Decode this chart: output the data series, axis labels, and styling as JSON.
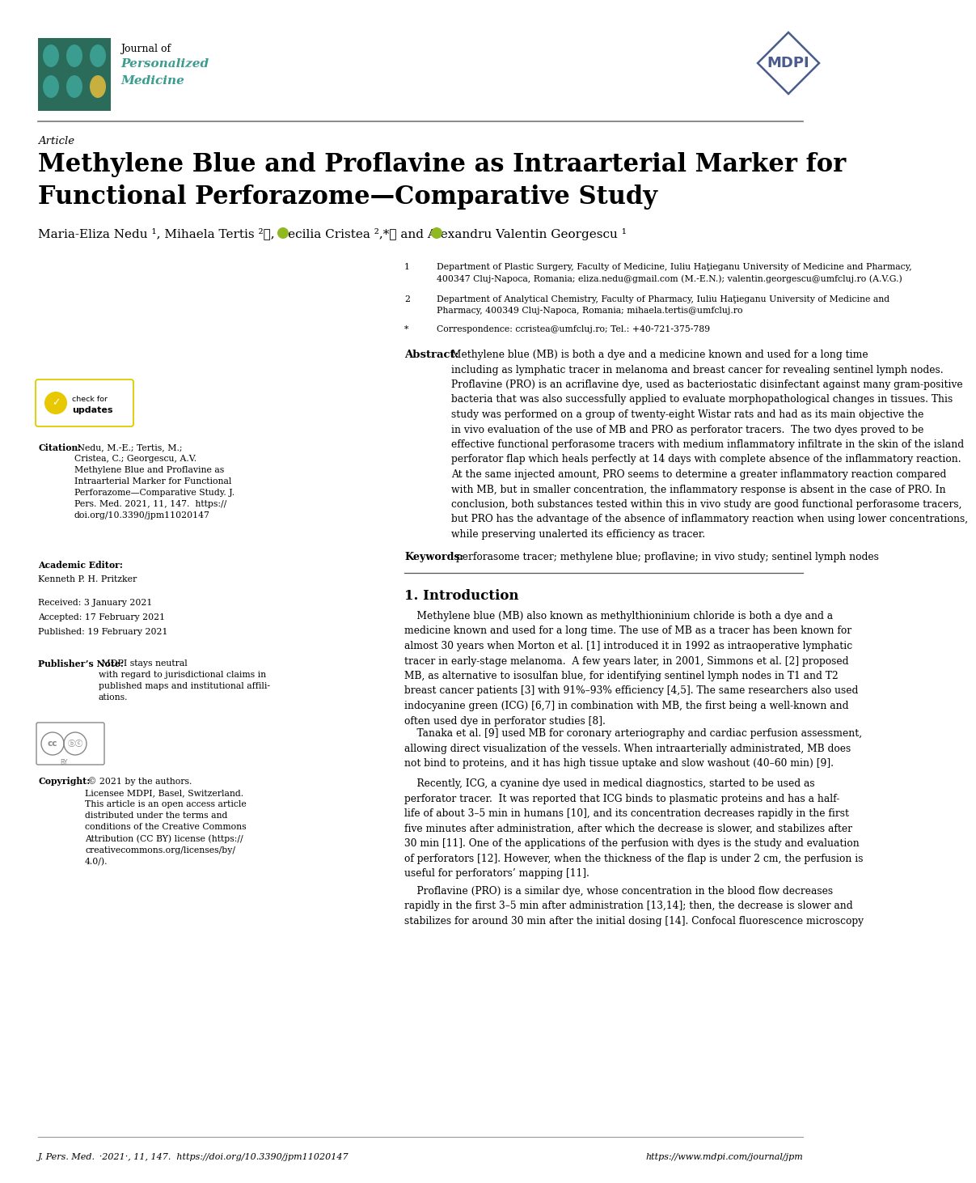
{
  "page_width": 10.2,
  "page_height": 14.42,
  "bg_color": "#ffffff",
  "teal_color": "#3a9d8f",
  "dark_teal": "#2a6b5a",
  "mdpi_blue": "#4a5b8c",
  "green_orcid": "#90b820",
  "journal_line1": "Journal of",
  "journal_line2": "Personalized",
  "journal_line3": "Medicine",
  "article_label": "Article",
  "title_line1": "Methylene Blue and Proflavine as Intraarterial Marker for",
  "title_line2": "Functional Perforazome—Comparative Study",
  "authors_text": "Maria-Eliza Nedu ¹, Mihaela Tertis ²ⓘ, Cecilia Cristea ²,*ⓘ and Alexandru Valentin Georgescu ¹",
  "affil1_num": "1",
  "affil1_text": "Department of Plastic Surgery, Faculty of Medicine, Iuliu Haţieganu University of Medicine and Pharmacy,\n400347 Cluj-Napoca, Romania; eliza.nedu@gmail.com (M.-E.N.); valentin.georgescu@umfcluj.ro (A.V.G.)",
  "affil2_num": "2",
  "affil2_text": "Department of Analytical Chemistry, Faculty of Pharmacy, Iuliu Haţieganu University of Medicine and\nPharmacy, 400349 Cluj-Napoca, Romania; mihaela.tertis@umfcluj.ro",
  "affil3_num": "*",
  "affil3_text": "Correspondence: ccristea@umfcluj.ro; Tel.: +40-721-375-789",
  "abstract_label": "Abstract:",
  "abstract_body": "Methylene blue (MB) is both a dye and a medicine known and used for a long time\nincluding as lymphatic tracer in melanoma and breast cancer for revealing sentinel lymph nodes.\nProflavine (PRO) is an acriflavine dye, used as bacteriostatic disinfectant against many gram-positive\nbacteria that was also successfully applied to evaluate morphopathological changes in tissues. This\nstudy was performed on a group of twenty-eight Wistar rats and had as its main objective the\nin vivo evaluation of the use of MB and PRO as perforator tracers.  The two dyes proved to be\neffective functional perforasome tracers with medium inflammatory infiltrate in the skin of the island\nperforator flap which heals perfectly at 14 days with complete absence of the inflammatory reaction.\nAt the same injected amount, PRO seems to determine a greater inflammatory reaction compared\nwith MB, but in smaller concentration, the inflammatory response is absent in the case of PRO. In\nconclusion, both substances tested within this in vivo study are good functional perforasome tracers,\nbut PRO has the advantage of the absence of inflammatory reaction when using lower concentrations,\nwhile preserving unalerted its efficiency as tracer.",
  "keywords_label": "Keywords:",
  "keywords_body": "perforasome tracer; methylene blue; proflavine; in vivo study; sentinel lymph nodes",
  "intro_heading": "1. Introduction",
  "intro_p1": "    Methylene blue (MB) also known as methylthioninium chloride is both a dye and a\nmedicine known and used for a long time. The use of MB as a tracer has been known for\nalmost 30 years when Morton et al. [1] introduced it in 1992 as intraoperative lymphatic\ntracer in early-stage melanoma.  A few years later, in 2001, Simmons et al. [2] proposed\nMB, as alternative to isosulfan blue, for identifying sentinel lymph nodes in T1 and T2\nbreast cancer patients [3] with 91%–93% efficiency [4,5]. The same researchers also used\nindocyanine green (ICG) [6,7] in combination with MB, the first being a well-known and\noften used dye in perforator studies [8].",
  "intro_p2": "    Tanaka et al. [9] used MB for coronary arteriography and cardiac perfusion assessment,\nallowing direct visualization of the vessels. When intraarterially administrated, MB does\nnot bind to proteins, and it has high tissue uptake and slow washout (40–60 min) [9].",
  "intro_p3": "    Recently, ICG, a cyanine dye used in medical diagnostics, started to be used as\nperforator tracer.  It was reported that ICG binds to plasmatic proteins and has a half-\nlife of about 3–5 min in humans [10], and its concentration decreases rapidly in the first\nfive minutes after administration, after which the decrease is slower, and stabilizes after\n30 min [11]. One of the applications of the perfusion with dyes is the study and evaluation\nof perforators [12]. However, when the thickness of the flap is under 2 cm, the perfusion is\nuseful for perforators’ mapping [11].",
  "intro_p4": "    Proflavine (PRO) is a similar dye, whose concentration in the blood flow decreases\nrapidly in the first 3–5 min after administration [13,14]; then, the decrease is slower and\nstabilizes for around 30 min after the initial dosing [14]. Confocal fluorescence microscopy",
  "sb_citation_label": "Citation:",
  "sb_citation_body": "Nedu, M.-E.; Tertis, M.;\nCristea, C.; Georgescu, A.V.\nMethylene Blue and Proflavine as\nIntraarterial Marker for Functional\nPerforazome—Comparative Study. J.\nPers. Med. ",
  "sb_citation_bold": "2021",
  "sb_citation_tail": ", 11, 147.  https://\ndoi.org/10.3390/jpm11020147",
  "sb_editor_label": "Academic Editor:",
  "sb_editor_name": "Kenneth P. H. Pritzker",
  "sb_received": "Received: 3 January 2021",
  "sb_accepted": "Accepted: 17 February 2021",
  "sb_published": "Published: 19 February 2021",
  "sb_publisher_label": "Publisher’s Note:",
  "sb_publisher_body": "MDPI stays neutral\nwith regard to jurisdictional claims in\npublished maps and institutional affili-\nations.",
  "sb_copyright_label": "Copyright:",
  "sb_copyright_body": "© 2021 by the authors.\nLicensee MDPI, Basel, Switzerland.\nThis article is an open access article\ndistributed under the terms and\nconditions of the Creative Commons\nAttribution (CC BY) license (https://\ncreativecommons.org/licenses/by/\n4.0/).",
  "footer_left": "J. Pers. Med. ",
  "footer_left_bold": "2021",
  "footer_left_tail": ", 11, 147.  https://doi.org/10.3390/jpm11020147",
  "footer_right": "https://www.mdpi.com/journal/jpm"
}
